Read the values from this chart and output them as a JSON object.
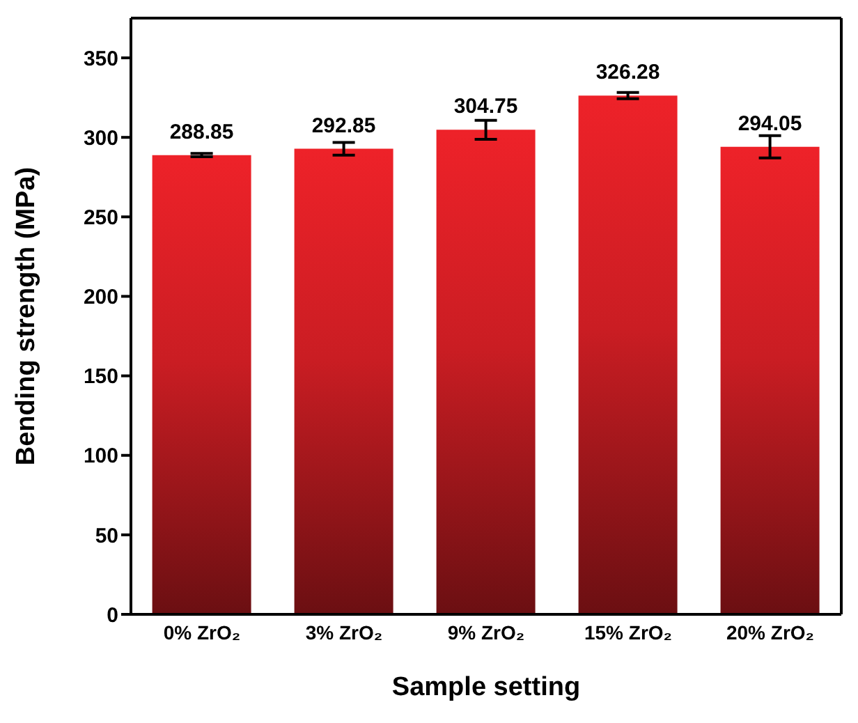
{
  "chart_data": {
    "type": "bar",
    "xlabel": "Sample setting",
    "ylabel": "Bending strength (MPa)",
    "categories": [
      "0% ZrO₂",
      "3% ZrO₂",
      "9% ZrO₂",
      "15% ZrO₂",
      "20% ZrO₂"
    ],
    "values": [
      288.85,
      292.85,
      304.75,
      326.28,
      294.05
    ],
    "errors": [
      1,
      4,
      6,
      2,
      7
    ],
    "color": "#ee2229",
    "ylim": [
      0,
      375
    ],
    "yticks": [
      0,
      50,
      100,
      150,
      200,
      250,
      300,
      350
    ],
    "data_labels": true,
    "grid": false,
    "legend": false
  }
}
